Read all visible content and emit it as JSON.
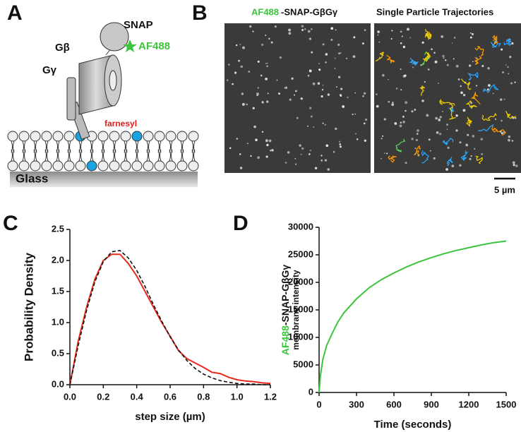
{
  "figure": {
    "panels": [
      "A",
      "B",
      "C",
      "D"
    ],
    "diagram": {
      "snap": "SNAP",
      "dye": "AF488",
      "gbeta": "Gβ",
      "ggamma": "Gγ",
      "lipid": "farnesyl",
      "substrate": "Glass"
    },
    "images": {
      "title_dye": "AF488",
      "title_rest": "-SNAP-GβGγ",
      "title_right": "Single Particle Trajectories",
      "scale_bar": "5 µm"
    }
  },
  "chart_data": [
    {
      "type": "line",
      "x_label": "step size (µm)",
      "y_label": "Probability Density",
      "x": [
        0,
        0.05,
        0.1,
        0.15,
        0.2,
        0.25,
        0.3,
        0.35,
        0.4,
        0.45,
        0.5,
        0.55,
        0.6,
        0.65,
        0.7,
        0.75,
        0.8,
        0.85,
        0.9,
        0.95,
        1.0,
        1.05,
        1.1,
        1.15,
        1.2
      ],
      "series": [
        {
          "color": "#e8291c",
          "style": "solid",
          "values": [
            0,
            0.7,
            1.25,
            1.7,
            2.0,
            2.1,
            2.1,
            1.95,
            1.75,
            1.5,
            1.25,
            1.0,
            0.78,
            0.55,
            0.42,
            0.35,
            0.28,
            0.2,
            0.18,
            0.12,
            0.08,
            0.06,
            0.05,
            0.03,
            0.02
          ]
        },
        {
          "color": "#111111",
          "style": "dashed",
          "values": [
            0,
            0.63,
            1.2,
            1.66,
            1.98,
            2.14,
            2.16,
            2.04,
            1.84,
            1.58,
            1.29,
            1.02,
            0.77,
            0.56,
            0.39,
            0.26,
            0.17,
            0.11,
            0.066,
            0.04,
            0.02,
            0.01,
            0.01,
            0,
            0
          ]
        }
      ],
      "xlim": [
        0,
        1.2
      ],
      "xticks": [
        {
          "value": 0,
          "label": "0.0"
        },
        0.2,
        0.4,
        0.6,
        0.8,
        {
          "value": 1,
          "label": "1.0"
        },
        1.2
      ],
      "ylim": [
        0,
        2.5
      ],
      "yticks": [
        {
          "value": 0,
          "label": "0.0"
        },
        0.5,
        {
          "value": 1,
          "label": "1.0"
        },
        1.5,
        {
          "value": 2,
          "label": "2.0"
        },
        2.5
      ]
    },
    {
      "type": "line",
      "x_label": "Time (seconds)",
      "y_label": {
        "dye": "AF488",
        "rest": "-SNAP-GβGγ",
        "line2": "membrane intensity"
      },
      "x": [
        0,
        10,
        30,
        60,
        100,
        150,
        200,
        300,
        400,
        500,
        600,
        700,
        800,
        900,
        1000,
        1100,
        1200,
        1300,
        1400,
        1500
      ],
      "series": [
        {
          "color": "#3cc43c",
          "style": "solid",
          "values": [
            0,
            3000,
            6000,
            8500,
            10500,
            12800,
            14500,
            17000,
            19000,
            20500,
            21700,
            22800,
            23700,
            24500,
            25200,
            25800,
            26300,
            26800,
            27200,
            27500
          ]
        }
      ],
      "xlim": [
        0,
        1500
      ],
      "xticks": [
        0,
        300,
        600,
        900,
        1200,
        1500
      ],
      "ylim": [
        0,
        30000
      ],
      "yticks": [
        0,
        5000,
        10000,
        15000,
        20000,
        25000,
        30000
      ]
    }
  ]
}
